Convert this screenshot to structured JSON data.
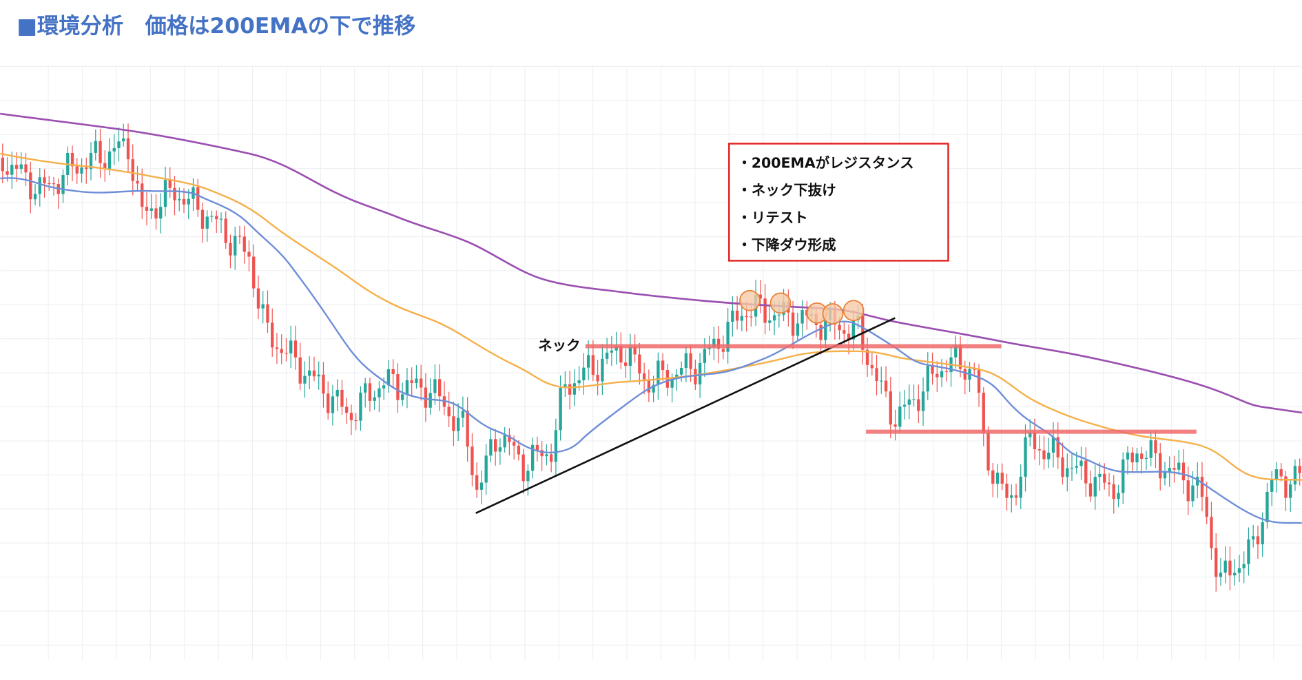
{
  "header": {
    "title": "■環境分析　価格は200EMAの下で推移"
  },
  "annotation_box": {
    "items": [
      "・200EMAがレジスタンス",
      "・ネック下抜け",
      "・リテスト",
      "・下降ダウ形成"
    ]
  },
  "neck_label": "ネック"
}
